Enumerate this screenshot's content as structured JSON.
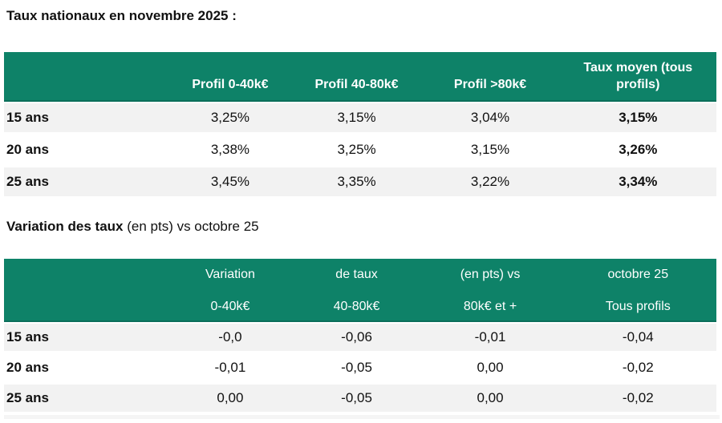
{
  "colors": {
    "header_green": "#0e8268",
    "header_green_border": "#0b6e5a",
    "row_alt_gray": "#f2f2f2",
    "header_text": "#ffffff",
    "body_text": "#111111"
  },
  "section1": {
    "title": "Taux nationaux en novembre 2025 :",
    "table": {
      "columns": [
        "",
        "Profil 0-40k€",
        "Profil 40-80k€",
        "Profil >80k€",
        "Taux moyen (tous profils)"
      ],
      "rows": [
        {
          "label": "15 ans",
          "values": [
            "3,25%",
            "3,15%",
            "3,04%",
            "3,15%"
          ]
        },
        {
          "label": "20 ans",
          "values": [
            "3,38%",
            "3,25%",
            "3,15%",
            "3,26%"
          ]
        },
        {
          "label": "25 ans",
          "values": [
            "3,45%",
            "3,35%",
            "3,22%",
            "3,34%"
          ]
        }
      ]
    }
  },
  "section2": {
    "title_bold": "Variation des taux",
    "title_rest": " (en pts) vs octobre 25",
    "table": {
      "columns_line1": [
        "",
        "Variation",
        "de taux",
        "(en pts) vs",
        "octobre 25"
      ],
      "columns_line2": [
        "",
        "0-40k€",
        "40-80k€",
        "80k€ et +",
        "Tous profils"
      ],
      "rows": [
        {
          "label": "15 ans",
          "values": [
            "-0,0",
            "-0,06",
            "-0,01",
            "-0,04"
          ]
        },
        {
          "label": "20 ans",
          "values": [
            "-0,01",
            "-0,05",
            "0,00",
            "-0,02"
          ]
        },
        {
          "label": "25 ans",
          "values": [
            "0,00",
            "-0,05",
            "0,00",
            "-0,02"
          ]
        }
      ]
    }
  },
  "chart_data": [
    {
      "type": "table",
      "title": "Taux nationaux en novembre 2025 :",
      "columns": [
        "",
        "Profil 0-40k€",
        "Profil 40-80k€",
        "Profil >80k€",
        "Taux moyen (tous profils)"
      ],
      "rows": [
        [
          "15 ans",
          "3,25%",
          "3,15%",
          "3,04%",
          "3,15%"
        ],
        [
          "20 ans",
          "3,38%",
          "3,25%",
          "3,15%",
          "3,26%"
        ],
        [
          "25 ans",
          "3,45%",
          "3,35%",
          "3,22%",
          "3,34%"
        ]
      ]
    },
    {
      "type": "table",
      "title": "Variation des taux (en pts) vs octobre 25",
      "columns": [
        "",
        "Variation 0-40k€",
        "de taux 40-80k€",
        "(en pts) vs 80k€ et +",
        "octobre 25 Tous profils"
      ],
      "rows": [
        [
          "15 ans",
          "-0,0",
          "-0,06",
          "-0,01",
          "-0,04"
        ],
        [
          "20 ans",
          "-0,01",
          "-0,05",
          "0,00",
          "-0,02"
        ],
        [
          "25 ans",
          "0,00",
          "-0,05",
          "0,00",
          "-0,02"
        ]
      ]
    }
  ]
}
